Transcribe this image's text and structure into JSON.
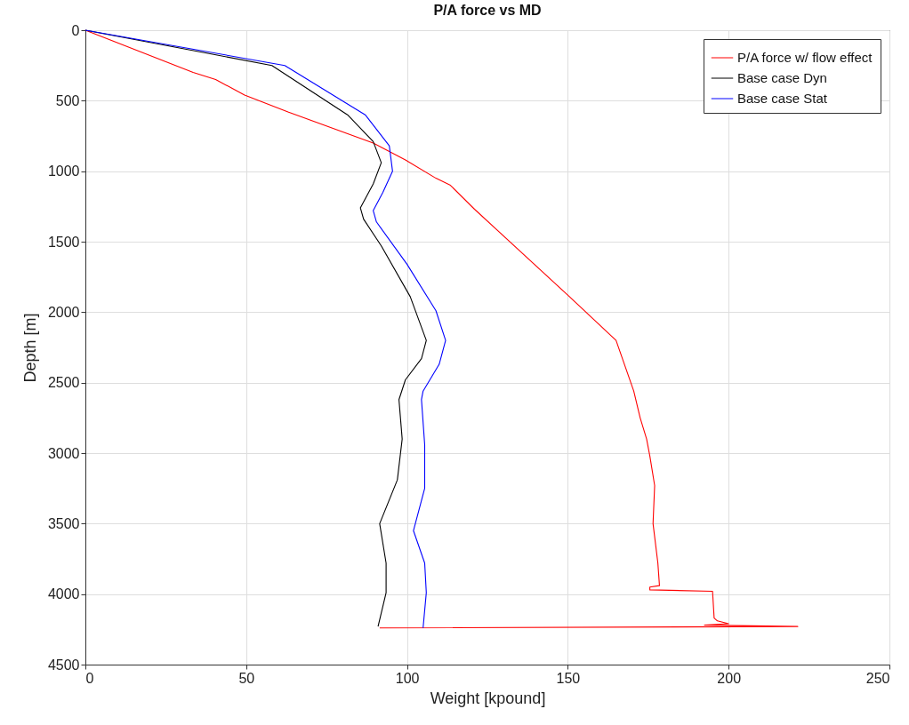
{
  "chart_data": {
    "type": "line",
    "title": "P/A force vs MD",
    "xlabel": "Weight [kpound]",
    "ylabel": "Depth [m]",
    "xlim": [
      0,
      250
    ],
    "xticks": [
      0,
      50,
      100,
      150,
      200,
      250
    ],
    "ylim": [
      4500,
      0
    ],
    "yticks": [
      0,
      500,
      1000,
      1500,
      2000,
      2500,
      3000,
      3500,
      4000,
      4500
    ],
    "grid": true,
    "legend": "top right",
    "line_style": "solid",
    "marker": "none",
    "series": [
      {
        "name": "P/A force w/ flow effect",
        "color": "#ff0000",
        "x": [
          0,
          33.5,
          40.5,
          49.5,
          63,
          89.5,
          99.5,
          109,
          113.5,
          121,
          150.5,
          165,
          170.5,
          172.5,
          174.5,
          175.5,
          177,
          176.5,
          178,
          178.5,
          175.5,
          175.5,
          195,
          195.5,
          196.5,
          200,
          192.5,
          221.5,
          91.5
        ],
        "values": [
          0,
          300,
          350,
          460,
          580,
          800,
          920,
          1050,
          1100,
          1270,
          1890,
          2200,
          2560,
          2750,
          2900,
          3020,
          3230,
          3500,
          3780,
          3940,
          3950,
          3970,
          3980,
          4170,
          4190,
          4210,
          4220,
          4230,
          4240
        ]
      },
      {
        "name": "Base case Dyn",
        "color": "#000000",
        "x": [
          0,
          58,
          81.5,
          89.5,
          92,
          89.5,
          85.5,
          86.5,
          92,
          101,
          106,
          104.5,
          99.5,
          97.5,
          98.5,
          97,
          91.5,
          93.5,
          93.5,
          91
        ],
        "values": [
          0,
          250,
          600,
          790,
          940,
          1090,
          1260,
          1340,
          1530,
          1890,
          2200,
          2330,
          2480,
          2620,
          2900,
          3190,
          3500,
          3780,
          3990,
          4230
        ]
      },
      {
        "name": "Base case Stat",
        "color": "#0000ff",
        "x": [
          0,
          62,
          87,
          94.5,
          95.5,
          92.5,
          89.5,
          90.5,
          100,
          109,
          112,
          110,
          105,
          104.5,
          105.5,
          105.5,
          102,
          105.5,
          106,
          105
        ],
        "values": [
          0,
          250,
          600,
          820,
          1000,
          1150,
          1280,
          1360,
          1660,
          1990,
          2200,
          2370,
          2560,
          2620,
          2940,
          3250,
          3550,
          3780,
          3990,
          4240
        ]
      }
    ]
  }
}
